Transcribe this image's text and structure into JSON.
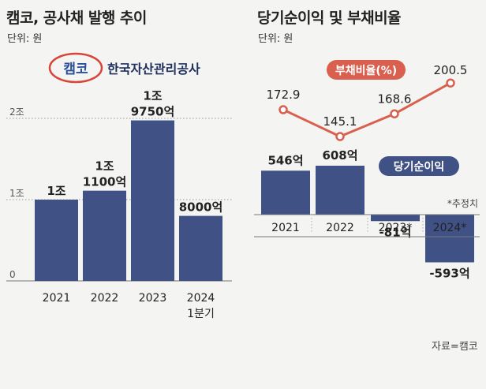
{
  "left": {
    "title": "캠코, 공사채 발행 추이",
    "unit": "단위: 원",
    "logo_text": "캠코",
    "org_name": "한국자산관리공사",
    "colors": {
      "bar": "#3f5185",
      "logo_red": "#d9443a",
      "logo_blue": "#2a4f9a"
    }
  },
  "right": {
    "title": "당기순이익 및 부채비율",
    "unit": "단위: 원",
    "debt_label": "부채비율(%)",
    "profit_label": "당기순이익",
    "estimate_note": "*추정치",
    "source": "자료=캠코",
    "colors": {
      "bar": "#3f5185",
      "line": "#d9604f",
      "badge": "#3f5185"
    }
  },
  "chart_data": [
    {
      "type": "bar",
      "title": "캠코, 공사채 발행 추이",
      "unit": "원",
      "categories": [
        "2021",
        "2022",
        "2023",
        "2024\n1분기"
      ],
      "values": [
        10000,
        11100,
        19750,
        8000
      ],
      "value_unit": "억",
      "value_labels": [
        "1조",
        "1조\n1100억",
        "1조\n9750억",
        "8000억"
      ],
      "ylim": [
        0,
        20000
      ],
      "yticks": [
        0,
        10000,
        20000
      ],
      "ytick_labels": [
        "0",
        "1조",
        "2조"
      ],
      "grid": true
    },
    {
      "type": "bar",
      "title": "당기순이익",
      "unit": "원",
      "categories": [
        "2021",
        "2022",
        "2023*",
        "2024*"
      ],
      "values": [
        546,
        608,
        -81,
        -593
      ],
      "value_unit": "억",
      "value_labels": [
        "546억",
        "608억",
        "-81억",
        "-593억"
      ]
    },
    {
      "type": "line",
      "title": "부채비율(%)",
      "categories": [
        "2021",
        "2022",
        "2023*",
        "2024*"
      ],
      "values": [
        172.9,
        145.1,
        168.6,
        200.5
      ],
      "value_labels": [
        "172.9",
        "145.1",
        "168.6",
        "200.5"
      ]
    }
  ]
}
